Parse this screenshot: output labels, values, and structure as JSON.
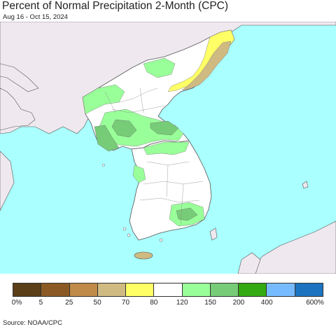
{
  "title": "Percent of Normal Precipitation 2-Month (CPC)",
  "date_range": "Aug 16 - Oct 15, 2024",
  "source": "Source: NOAA/CPC",
  "colors": {
    "ocean": "#aaffff",
    "land_outside": "#efe9ef",
    "land_base": "#ffffff",
    "border": "#555555"
  },
  "legend": {
    "labels": [
      "0%",
      "5",
      "25",
      "50",
      "70",
      "80",
      "120",
      "150",
      "200",
      "400",
      "600%"
    ],
    "colors": [
      "#5a3f18",
      "#8b5a24",
      "#c08a48",
      "#cfba82",
      "#ffff66",
      "#ffffff",
      "#99ff99",
      "#77cc77",
      "#33aa11",
      "#77bbff",
      "#1c74c0"
    ]
  }
}
